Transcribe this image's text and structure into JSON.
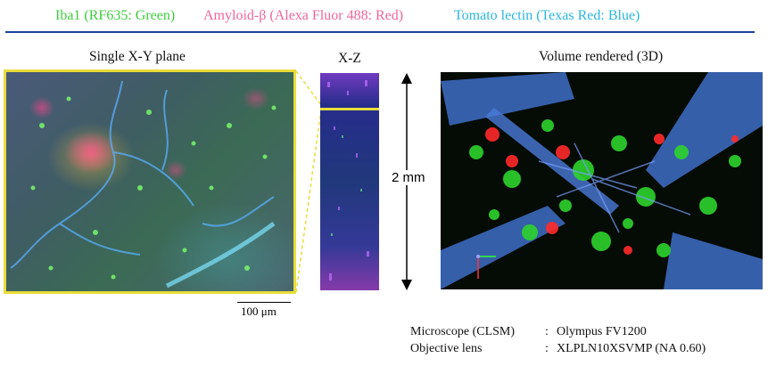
{
  "legend": {
    "iba1": "Iba1 (RF635: Green)",
    "amyloid": "Amyloid-β (Alexa Fluor 488: Red)",
    "lectin": "Tomato lectin (Texas Red: Blue)"
  },
  "colors": {
    "iba1": "#3ccf3c",
    "amyloid": "#f0669a",
    "lectin": "#2ab6e0",
    "rule": "#1f3f9f",
    "highlight": "#e9dc3a"
  },
  "panels": {
    "xy_title": "Single X-Y plane",
    "xz_title": "X-Z",
    "vol_title": "Volume rendered (3D)"
  },
  "scale": {
    "bar_label": "100 μm",
    "depth_label": "2 mm"
  },
  "meta": {
    "microscope_key": "Microscope (CLSM)",
    "microscope_val": "Olympus FV1200",
    "objective_key": "Objective lens",
    "objective_val": "XLPLN10XSVMP (NA 0.60)",
    "separator": ":"
  }
}
